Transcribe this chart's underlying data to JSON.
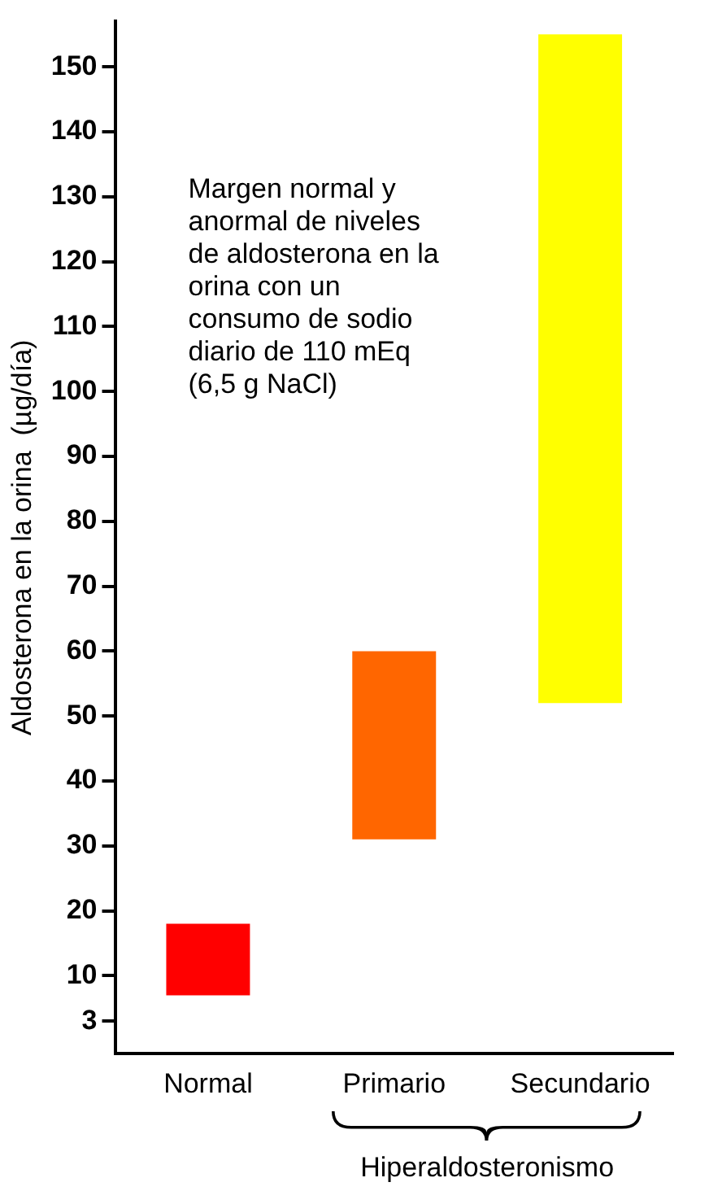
{
  "chart_data": {
    "type": "bar",
    "ylabel": "Aldosterona en la orina  (µg/día)",
    "categories": [
      "Normal",
      "Primario",
      "Secundario"
    ],
    "base": [
      7,
      31,
      52
    ],
    "values": [
      11,
      29,
      103
    ],
    "colors": [
      "#ff0000",
      "#ff6600",
      "#ffff00"
    ],
    "ylim": [
      -2,
      157
    ],
    "yticks": [
      3,
      10,
      20,
      30,
      40,
      50,
      60,
      70,
      80,
      90,
      100,
      110,
      120,
      130,
      140,
      150
    ],
    "grid": false,
    "legend": false,
    "annotations": [
      "Margen normal y\nanormal de niveles\nde aldosterona en la\norina con un\nconsumo de sodio\ndiario de 110 mEq\n(6,5 g NaCl)",
      "Hiperaldosteronismo"
    ]
  }
}
